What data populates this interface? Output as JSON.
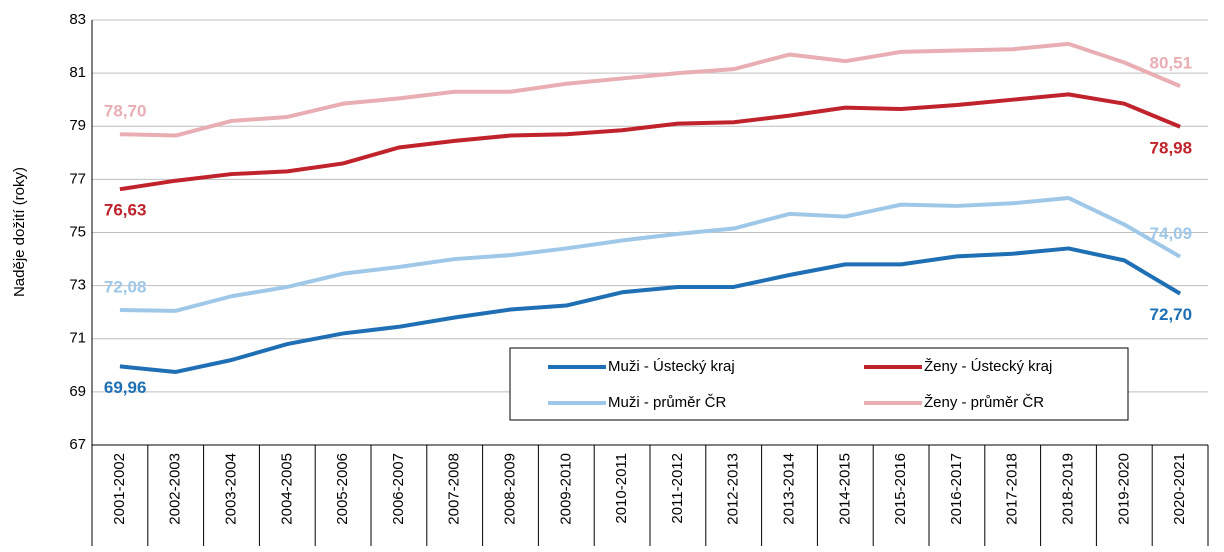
{
  "chart_data": {
    "type": "line",
    "y_label": "Naděje dožití (roky)",
    "categories": [
      "2001-2002",
      "2002-2003",
      "2003-2004",
      "2004-2005",
      "2005-2006",
      "2006-2007",
      "2007-2008",
      "2008-2009",
      "2009-2010",
      "2010-2011",
      "2011-2012",
      "2012-2013",
      "2013-2014",
      "2014-2015",
      "2015-2016",
      "2016-2017",
      "2017-2018",
      "2018-2019",
      "2019-2020",
      "2020-2021"
    ],
    "series": [
      {
        "name": "Muži - Ústecký kraj",
        "color": "#1f6fb5",
        "values": [
          69.96,
          69.75,
          70.2,
          70.8,
          71.2,
          71.45,
          71.8,
          72.1,
          72.25,
          72.75,
          72.95,
          72.95,
          73.4,
          73.8,
          73.8,
          74.1,
          74.2,
          74.4,
          73.95,
          72.7
        ],
        "value_labels": [
          "69,96",
          null,
          null,
          null,
          null,
          null,
          null,
          null,
          null,
          null,
          null,
          null,
          null,
          null,
          null,
          null,
          null,
          null,
          null,
          "72,70"
        ]
      },
      {
        "name": "Ženy - Ústecký kraj",
        "color": "#c0232c",
        "values": [
          76.63,
          76.95,
          77.2,
          77.3,
          77.6,
          78.2,
          78.45,
          78.65,
          78.7,
          78.85,
          79.1,
          79.15,
          79.4,
          79.7,
          79.65,
          79.8,
          80.0,
          80.2,
          79.85,
          78.98
        ],
        "value_labels": [
          "76,63",
          null,
          null,
          null,
          null,
          null,
          null,
          null,
          null,
          null,
          null,
          null,
          null,
          null,
          null,
          null,
          null,
          null,
          null,
          "78,98"
        ]
      },
      {
        "name": "Muži - průměr ČR",
        "color": "#9fc8e8",
        "values": [
          72.08,
          72.05,
          72.6,
          72.95,
          73.45,
          73.7,
          74.0,
          74.15,
          74.4,
          74.7,
          74.95,
          75.15,
          75.7,
          75.6,
          76.05,
          76.0,
          76.1,
          76.3,
          75.3,
          74.09
        ],
        "value_labels": [
          "72,08",
          null,
          null,
          null,
          null,
          null,
          null,
          null,
          null,
          null,
          null,
          null,
          null,
          null,
          null,
          null,
          null,
          null,
          null,
          "74,09"
        ]
      },
      {
        "name": "Ženy - průměr ČR",
        "color": "#e8aeb3",
        "values": [
          78.7,
          78.65,
          79.2,
          79.35,
          79.85,
          80.05,
          80.3,
          80.3,
          80.6,
          80.8,
          81.0,
          81.15,
          81.7,
          81.45,
          81.8,
          81.85,
          81.9,
          82.1,
          81.4,
          80.51
        ],
        "value_labels": [
          "78,70",
          null,
          null,
          null,
          null,
          null,
          null,
          null,
          null,
          null,
          null,
          null,
          null,
          null,
          null,
          null,
          null,
          null,
          null,
          "80,51"
        ]
      }
    ],
    "ylim": [
      67,
      83
    ],
    "yticks": [
      67,
      69,
      71,
      73,
      75,
      77,
      79,
      81,
      83
    ],
    "grid": true,
    "legend": "lower right"
  }
}
